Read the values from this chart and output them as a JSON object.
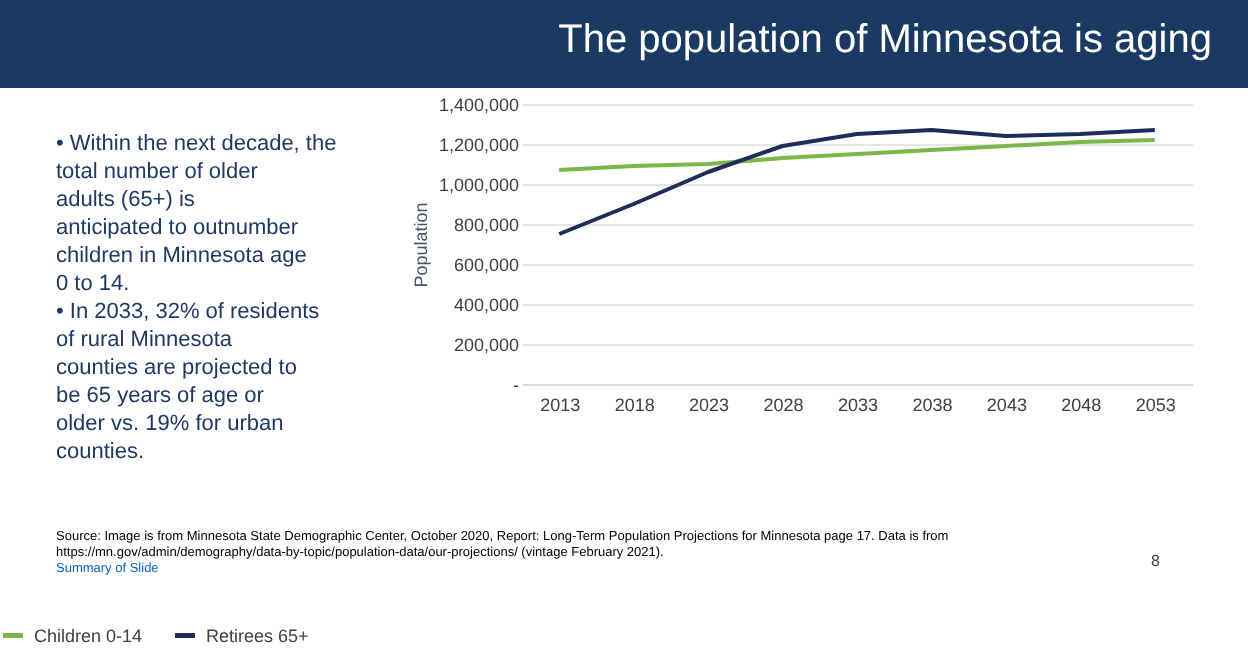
{
  "chart_data": {
    "type": "line",
    "title": "The population of Minnesota is aging",
    "ylabel": "Population",
    "categories": [
      "2013",
      "2018",
      "2023",
      "2028",
      "2033",
      "2038",
      "2043",
      "2048",
      "2053"
    ],
    "series": [
      {
        "name": "Children 0-14",
        "color": "#7ab648",
        "values": [
          1070000,
          1090000,
          1100000,
          1130000,
          1150000,
          1170000,
          1190000,
          1210000,
          1220000
        ]
      },
      {
        "name": "Retirees 65+",
        "color": "#1f2d5a",
        "values": [
          750000,
          900000,
          1060000,
          1190000,
          1250000,
          1270000,
          1240000,
          1250000,
          1270000
        ]
      }
    ],
    "ylim": [
      0,
      1400000
    ],
    "yticks": [
      {
        "value": 0,
        "label": "-"
      },
      {
        "value": 200000,
        "label": "200,000"
      },
      {
        "value": 400000,
        "label": "400,000"
      },
      {
        "value": 600000,
        "label": "600,000"
      },
      {
        "value": 800000,
        "label": "800,000"
      },
      {
        "value": 1000000,
        "label": "1,000,000"
      },
      {
        "value": 1200000,
        "label": "1,200,000"
      },
      {
        "value": 1400000,
        "label": "1,400,000"
      }
    ],
    "grid": "y",
    "legend": "bottom",
    "marker": "none",
    "line_style": "solid",
    "annotations": [
      "• Within the next decade, the total number of older adults (65+) is anticipated to outnumber children in Minnesota age 0 to 14.",
      "• In 2033, 32% of residents of rural Minnesota counties are projected to be 65 years of age or older vs. 19% for urban counties.",
      "Source: Image is from Minnesota State Demographic Center, October 2020,  Report: Long-Term Population Projections for Minnesota page 17. Data is from https://mn.gov/admin/demography/data-by-topic/population-data/our-projections/  (vintage February 2021).",
      "Summary of Slide",
      "8"
    ]
  }
}
